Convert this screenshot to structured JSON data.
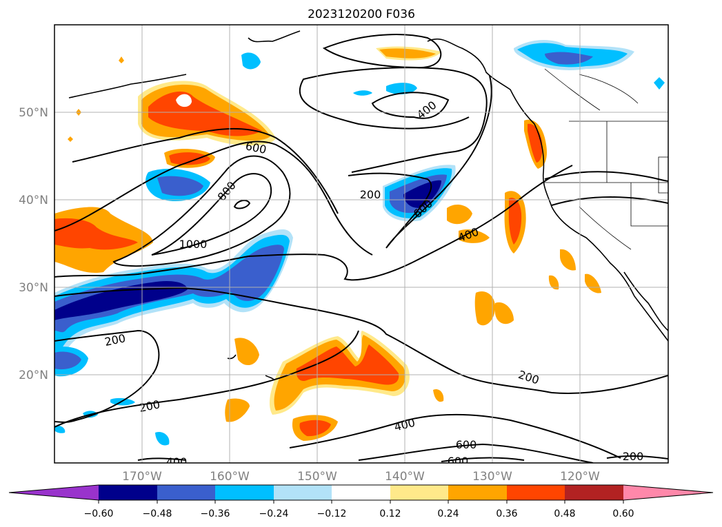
{
  "title": "2023120200 F036",
  "map": {
    "lat_labels": [
      "50°N",
      "40°N",
      "30°N",
      "20°N"
    ],
    "lon_labels": [
      "170°W",
      "160°W",
      "150°W",
      "140°W",
      "130°W",
      "120°W"
    ],
    "contour_labels": [
      {
        "text": "400",
        "angle": -38
      },
      {
        "text": "600",
        "angle": 12
      },
      {
        "text": "800",
        "angle": -50
      },
      {
        "text": "1000",
        "angle": 0
      },
      {
        "text": "200",
        "angle": 0
      },
      {
        "text": "600",
        "angle": -42
      },
      {
        "text": "400",
        "angle": -20
      },
      {
        "text": "200",
        "angle": -12
      },
      {
        "text": "200",
        "angle": 18
      },
      {
        "text": "200",
        "angle": -12
      },
      {
        "text": "400",
        "angle": -14
      },
      {
        "text": "600",
        "angle": 0
      },
      {
        "text": "600",
        "angle": 0
      },
      {
        "text": "200",
        "angle": 0
      },
      {
        "text": "400",
        "angle": 0
      }
    ]
  },
  "colorbar": {
    "colors": {
      "extend_min": "#9933cc",
      "c1": "#00008b",
      "c2": "#3a5fcd",
      "c3": "#00bfff",
      "c4": "#b2e2f8",
      "c5": "#ffffff",
      "c6": "#ffe98a",
      "c7": "#ffa500",
      "c8": "#ff4500",
      "c9": "#b22222",
      "extend_max": "#ff88aa"
    },
    "tick_labels": [
      "−0.60",
      "−0.48",
      "−0.36",
      "−0.24",
      "−0.12",
      "0.12",
      "0.24",
      "0.36",
      "0.48",
      "0.60"
    ]
  }
}
